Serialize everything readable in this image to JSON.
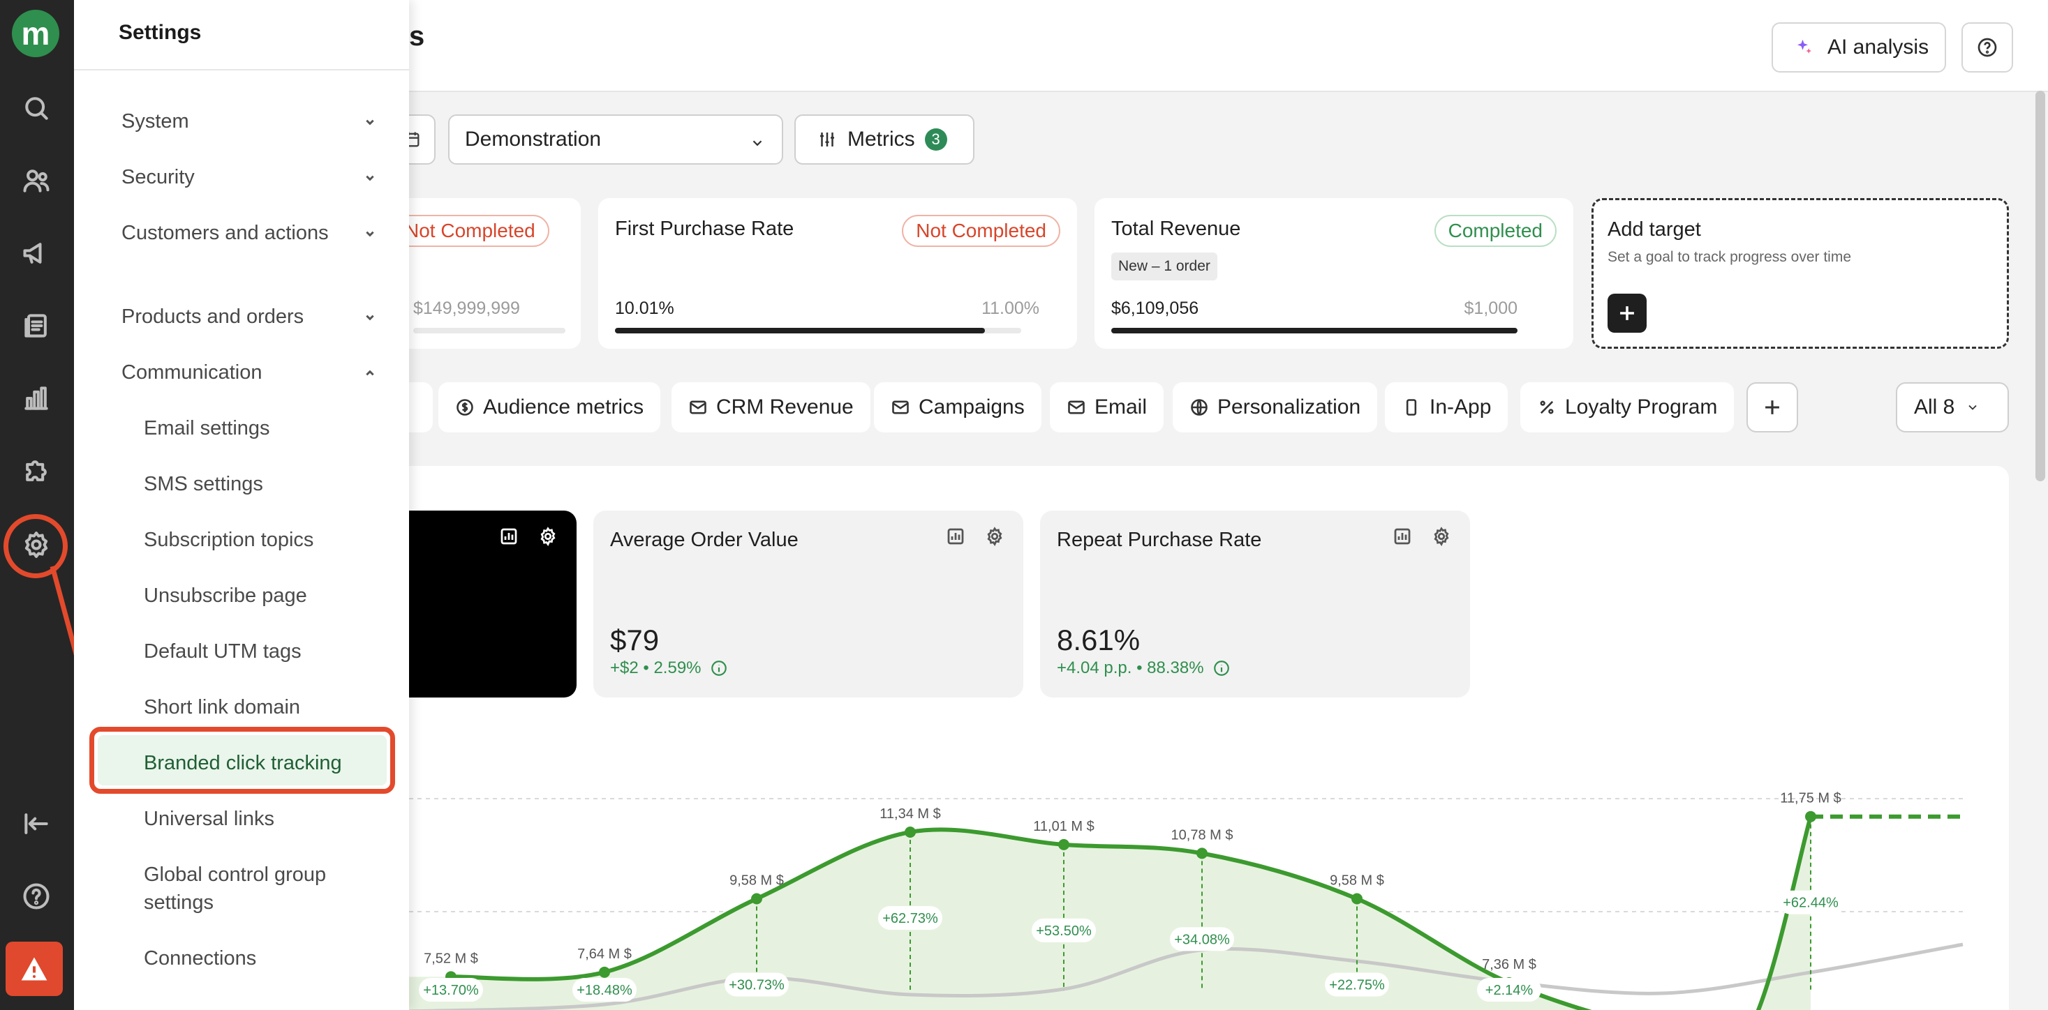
{
  "rail": {
    "logo": "m",
    "icons": [
      "search-icon",
      "people-icon",
      "megaphone-icon",
      "documents-icon",
      "chart-icon",
      "puzzle-icon",
      "gear-icon",
      "collapse-icon",
      "help-icon",
      "alert-icon"
    ]
  },
  "settings": {
    "title": "Settings",
    "sections": [
      {
        "label": "System",
        "expanded": false
      },
      {
        "label": "Security",
        "expanded": false
      },
      {
        "label": "Customers and actions",
        "expanded": false
      },
      {
        "label": "Products and orders",
        "expanded": false
      },
      {
        "label": "Communication",
        "expanded": true
      }
    ],
    "communication_items": [
      "Email settings",
      "SMS settings",
      "Subscription topics",
      "Unsubscribe page",
      "Default UTM tags",
      "Short link domain",
      "Branded click tracking",
      "Universal links",
      "Global control group settings",
      "Connections"
    ],
    "active_item": "Branded click tracking"
  },
  "header": {
    "title_fragment": "s",
    "ai_button": "AI analysis"
  },
  "filters": {
    "project_select": "Demonstration",
    "metrics_label": "Metrics",
    "metrics_count": "3"
  },
  "targets": [
    {
      "title": "",
      "status": "Not Completed",
      "current": "",
      "target": "$149,999,999",
      "progress": 0
    },
    {
      "title": "First Purchase Rate",
      "status": "Not Completed",
      "current": "10.01%",
      "target": "11.00%",
      "progress": 0.91
    },
    {
      "title": "Total Revenue",
      "status": "Completed",
      "tag": "New – 1 order",
      "current": "$6,109,056",
      "target": "$1,000",
      "progress": 1.0
    }
  ],
  "add_target": {
    "title": "Add target",
    "subtitle": "Set a goal to track progress over time"
  },
  "tabs": [
    "Audience metrics",
    "CRM Revenue",
    "Campaigns",
    "Email",
    "Personalization",
    "In-App",
    "Loyalty Program"
  ],
  "all_dropdown": "All 8",
  "metric_cards": [
    {
      "title": "Average Order Value",
      "value": "$79",
      "delta": "+$2 • 2.59%"
    },
    {
      "title": "Repeat Purchase Rate",
      "value": "8.61%",
      "delta": "+4.04 p.p. • 88.38%"
    }
  ],
  "chart_data": {
    "type": "line",
    "series": [
      {
        "values": [
          7.52,
          7.64,
          9.58,
          11.34,
          11.01,
          10.78,
          9.58,
          7.36,
          6.1,
          6.0,
          11.75
        ]
      }
    ],
    "point_labels": [
      "7,52 M $",
      "7,64 M $",
      "9,58 M $",
      "11,34 M $",
      "11,01 M $",
      "10,78 M $",
      "9,58 M $",
      "7,36 M $",
      "",
      "",
      "11,75 M $"
    ],
    "change_labels": [
      "+13.70%",
      "+18.48%",
      "+30.73%",
      "+62.73%",
      "+53.50%",
      "+34.08%",
      "+22.75%",
      "+2.14%",
      "",
      "",
      "+62.44%"
    ],
    "colors": {
      "main": "#3c9a2f",
      "compare": "#c8c8c8",
      "fill": "#e6f2df"
    }
  }
}
